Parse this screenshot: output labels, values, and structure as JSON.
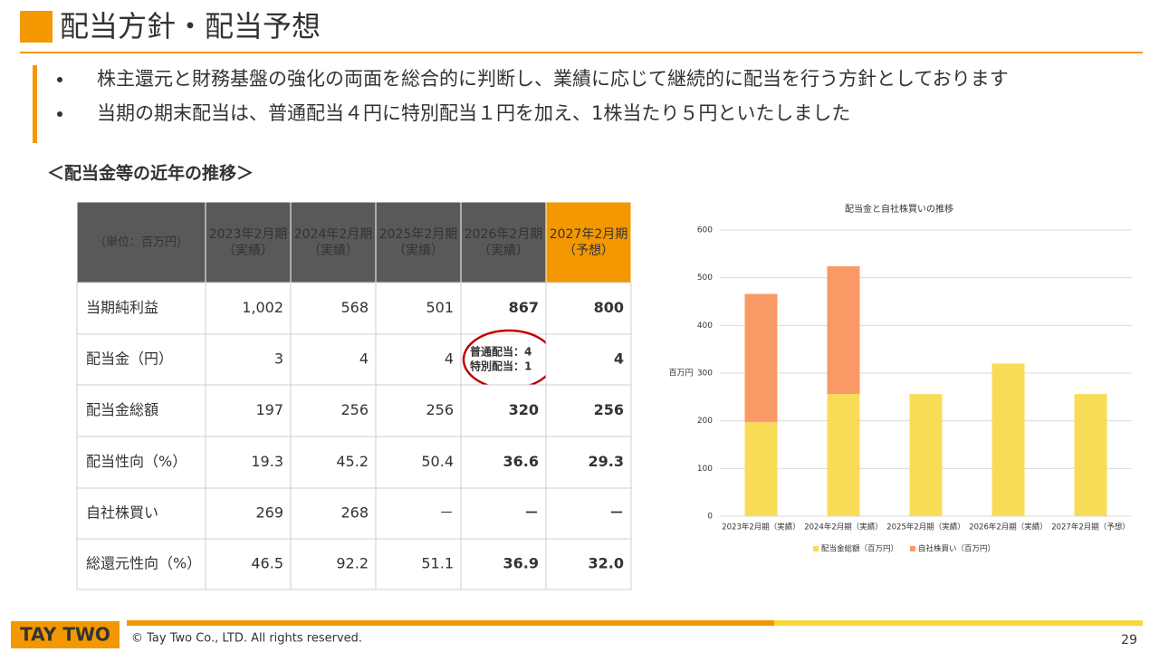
{
  "header": {
    "title": "配当方針・配当予想"
  },
  "bullets": [
    "株主還元と財務基盤の強化の両面を総合的に判断し、業績に応じて継続的に配当を行う方針としております",
    "当期の期末配当は、普通配当４円に特別配当１円を加え、1株当たり５円といたしました"
  ],
  "section_title": "＜配当金等の近年の推移＞",
  "table": {
    "unit_label": "（単位：百万円）",
    "columns": [
      [
        "2023年2月期",
        "（実績）"
      ],
      [
        "2024年2月期",
        "（実績）"
      ],
      [
        "2025年2月期",
        "（実績）"
      ],
      [
        "2026年2月期",
        "（実績）"
      ],
      [
        "2027年2月期",
        "（予想）"
      ]
    ],
    "rows": [
      [
        "当期純利益",
        "1,002",
        "568",
        "501",
        "867",
        "800"
      ],
      [
        "配当金（円）",
        "3",
        "4",
        "4",
        [
          "普通配当：4",
          "特別配当：1"
        ],
        "4"
      ],
      [
        "配当金総額",
        "197",
        "256",
        "256",
        "320",
        "256"
      ],
      [
        "配当性向（%）",
        "19.3",
        "45.2",
        "50.4",
        "36.6",
        "29.3"
      ],
      [
        "自社株買い",
        "269",
        "268",
        "－",
        "－",
        "－"
      ],
      [
        "総還元性向（%）",
        "46.5",
        "92.2",
        "51.1",
        "36.9",
        "32.0"
      ]
    ]
  },
  "chart_data": {
    "type": "bar",
    "stacked": true,
    "title": "配当金と自社株買いの推移",
    "y_label": "百万円",
    "categories": [
      "2023年2月期（実績）",
      "2024年2月期（実績）",
      "2025年2月期（実績）",
      "2026年2月期（実績）",
      "2027年2月期（予想）"
    ],
    "series": [
      {
        "name": "配当金総額（百万円）",
        "color": "#f8dc55",
        "values": [
          197,
          256,
          256,
          320,
          256
        ]
      },
      {
        "name": "自社株買い（百万円）",
        "color": "#f99a66",
        "values": [
          269,
          268,
          null,
          null,
          null
        ]
      }
    ],
    "ylim": [
      0,
      600
    ],
    "yticks": [
      0,
      100,
      200,
      300,
      400,
      500,
      600
    ],
    "grid": true,
    "legend": "bottom"
  },
  "footer": {
    "logo": "TAY TWO",
    "copyright": "© Tay Two Co., LTD. All rights reserved.",
    "page": "29"
  }
}
